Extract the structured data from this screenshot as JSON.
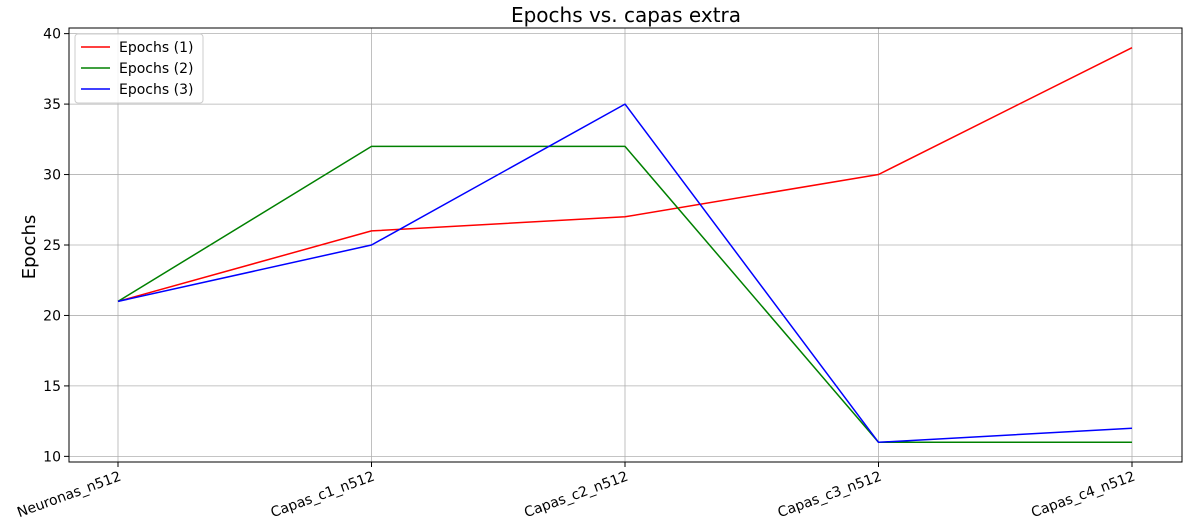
{
  "chart_data": {
    "type": "line",
    "title": "Epochs vs. capas extra",
    "xlabel": "",
    "ylabel": "Epochs",
    "categories": [
      "Neuronas_n512",
      "Capas_c1_n512",
      "Capas_c2_n512",
      "Capas_c3_n512",
      "Capas_c4_n512"
    ],
    "series": [
      {
        "name": "Epochs (1)",
        "color": "#ff0000",
        "values": [
          21,
          26,
          27,
          30,
          39
        ]
      },
      {
        "name": "Epochs (2)",
        "color": "#008000",
        "values": [
          21,
          32,
          32,
          11,
          11
        ]
      },
      {
        "name": "Epochs (3)",
        "color": "#0000ff",
        "values": [
          21,
          25,
          35,
          11,
          12
        ]
      }
    ],
    "ylim": [
      9.6,
      40.4
    ],
    "yticks": [
      10,
      15,
      20,
      25,
      30,
      35,
      40
    ],
    "grid": true,
    "legend_position": "top-left"
  }
}
